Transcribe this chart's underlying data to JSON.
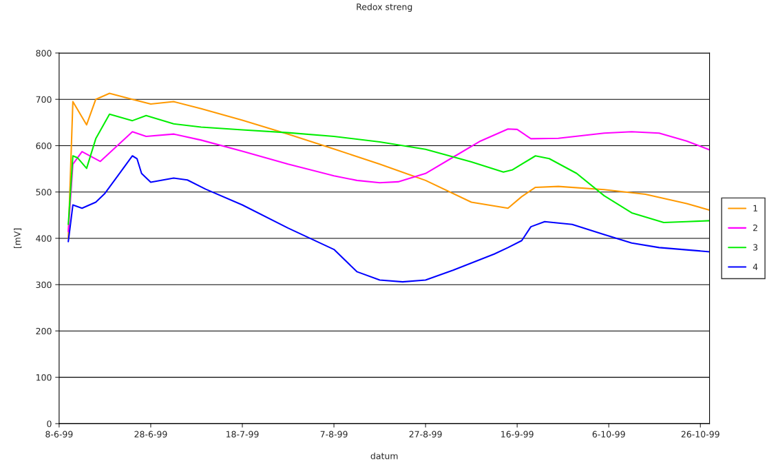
{
  "chart_data": {
    "type": "line",
    "title": "Redox streng",
    "xlabel": "datum",
    "ylabel": "[mV]",
    "xlim": [
      "1999-06-08",
      "1999-10-28"
    ],
    "xticks": [
      {
        "value": "1999-06-08",
        "label": "8-6-99"
      },
      {
        "value": "1999-06-28",
        "label": "28-6-99"
      },
      {
        "value": "1999-07-18",
        "label": "18-7-99"
      },
      {
        "value": "1999-08-07",
        "label": "7-8-99"
      },
      {
        "value": "1999-08-27",
        "label": "27-8-99"
      },
      {
        "value": "1999-09-16",
        "label": "16-9-99"
      },
      {
        "value": "1999-10-06",
        "label": "6-10-99"
      },
      {
        "value": "1999-10-26",
        "label": "26-10-99"
      }
    ],
    "ylim": [
      0,
      800
    ],
    "yticks": [
      0,
      100,
      200,
      300,
      400,
      500,
      600,
      700,
      800
    ],
    "grid": "y",
    "legend": "right",
    "marker": "none",
    "line_style": "solid",
    "series": [
      {
        "name": "1",
        "color": "#ff9900",
        "x": [
          "1999-06-10",
          "1999-06-11",
          "1999-06-14",
          "1999-06-16",
          "1999-06-19",
          "1999-06-24",
          "1999-06-28",
          "1999-07-03",
          "1999-07-09",
          "1999-07-18",
          "1999-07-28",
          "1999-08-07",
          "1999-08-17",
          "1999-08-27",
          "1999-09-06",
          "1999-09-14",
          "1999-09-17",
          "1999-09-20",
          "1999-09-25",
          "1999-10-05",
          "1999-10-14",
          "1999-10-23",
          "1999-10-28"
        ],
        "values": [
          400,
          695,
          645,
          700,
          713,
          700,
          690,
          695,
          680,
          655,
          625,
          593,
          560,
          525,
          478,
          465,
          490,
          510,
          512,
          505,
          495,
          475,
          461
        ]
      },
      {
        "name": "2",
        "color": "#ff00ff",
        "x": [
          "1999-06-10",
          "1999-06-11",
          "1999-06-13",
          "1999-06-17",
          "1999-06-24",
          "1999-06-27",
          "1999-07-03",
          "1999-07-09",
          "1999-07-18",
          "1999-07-28",
          "1999-08-07",
          "1999-08-12",
          "1999-08-17",
          "1999-08-21",
          "1999-08-27",
          "1999-09-02",
          "1999-09-08",
          "1999-09-14",
          "1999-09-16",
          "1999-09-19",
          "1999-09-25",
          "1999-10-05",
          "1999-10-11",
          "1999-10-17",
          "1999-10-23",
          "1999-10-28"
        ],
        "values": [
          415,
          560,
          587,
          566,
          630,
          620,
          625,
          612,
          588,
          560,
          535,
          525,
          520,
          522,
          540,
          575,
          610,
          636,
          635,
          615,
          616,
          627,
          630,
          627,
          610,
          591
        ]
      },
      {
        "name": "3",
        "color": "#00ee00",
        "x": [
          "1999-06-10",
          "1999-06-11",
          "1999-06-12",
          "1999-06-14",
          "1999-06-16",
          "1999-06-19",
          "1999-06-24",
          "1999-06-27",
          "1999-07-03",
          "1999-07-09",
          "1999-07-18",
          "1999-07-28",
          "1999-08-07",
          "1999-08-17",
          "1999-08-27",
          "1999-09-06",
          "1999-09-13",
          "1999-09-15",
          "1999-09-20",
          "1999-09-23",
          "1999-09-29",
          "1999-10-05",
          "1999-10-11",
          "1999-10-18",
          "1999-10-23",
          "1999-10-28"
        ],
        "values": [
          430,
          578,
          574,
          551,
          615,
          668,
          654,
          665,
          647,
          640,
          634,
          628,
          620,
          608,
          592,
          565,
          543,
          548,
          578,
          572,
          540,
          492,
          455,
          434,
          436,
          438
        ]
      },
      {
        "name": "4",
        "color": "#0000ff",
        "x": [
          "1999-06-10",
          "1999-06-11",
          "1999-06-13",
          "1999-06-16",
          "1999-06-18",
          "1999-06-24",
          "1999-06-25",
          "1999-06-26",
          "1999-06-28",
          "1999-07-03",
          "1999-07-06",
          "1999-07-10",
          "1999-07-18",
          "1999-07-28",
          "1999-08-07",
          "1999-08-12",
          "1999-08-17",
          "1999-08-22",
          "1999-08-27",
          "1999-09-02",
          "1999-09-11",
          "1999-09-14",
          "1999-09-17",
          "1999-09-19",
          "1999-09-22",
          "1999-09-28",
          "1999-10-05",
          "1999-10-11",
          "1999-10-17",
          "1999-10-28"
        ],
        "values": [
          393,
          472,
          465,
          478,
          497,
          578,
          572,
          540,
          521,
          530,
          526,
          506,
          472,
          422,
          376,
          328,
          310,
          306,
          310,
          331,
          366,
          380,
          395,
          425,
          436,
          430,
          408,
          390,
          380,
          371
        ]
      }
    ]
  }
}
